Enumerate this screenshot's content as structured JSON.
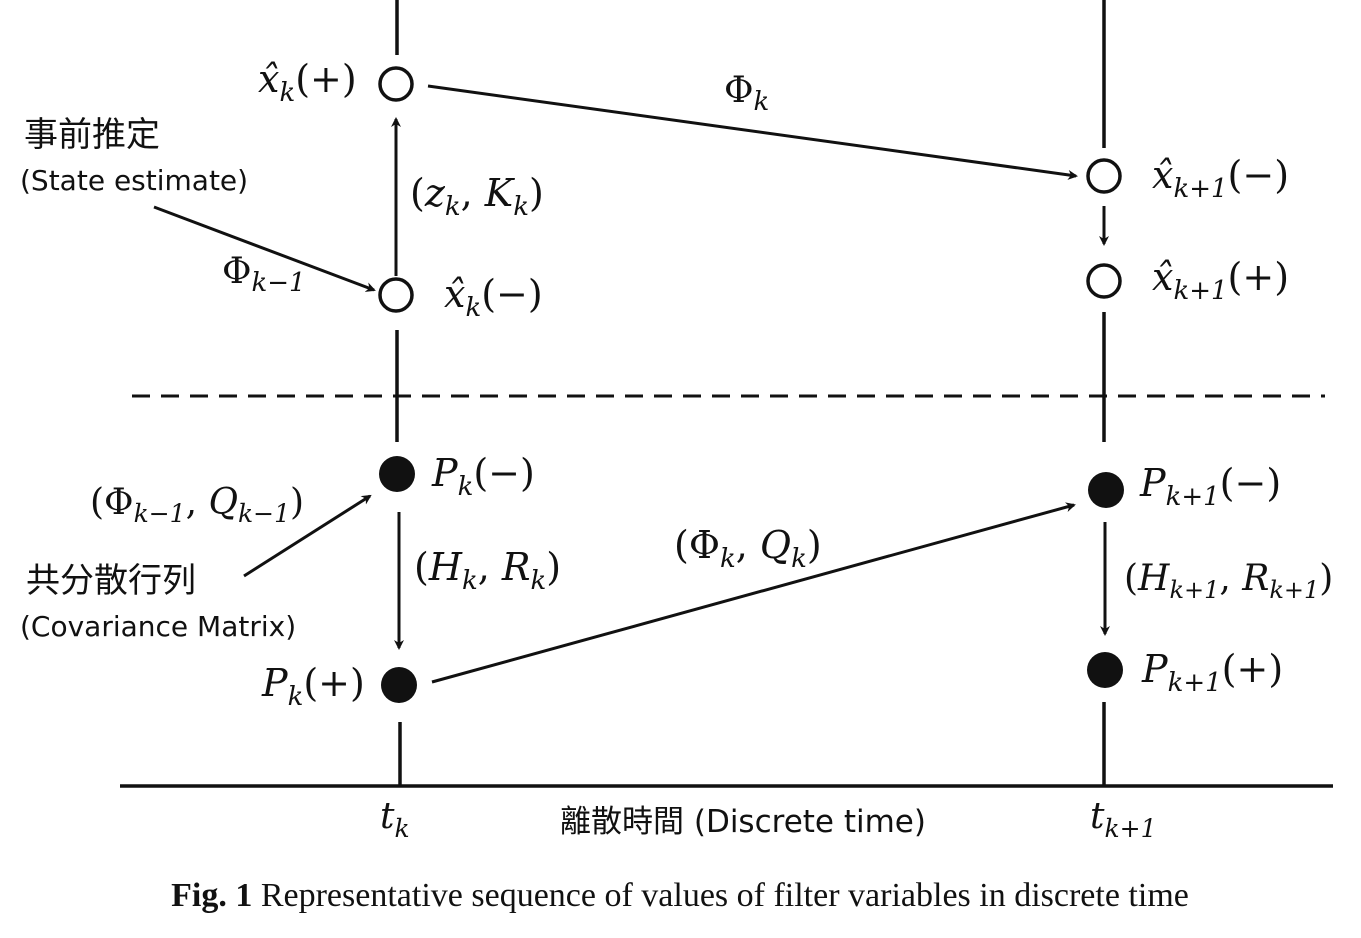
{
  "labels": {
    "xk_plus": {
      "base": "x̂",
      "sub": "k",
      "arg": "(+)"
    },
    "xk_minus": {
      "base": "x̂",
      "sub": "k",
      "arg": "(−)"
    },
    "xk1_minus": {
      "base": "x̂",
      "sub": "k+1",
      "arg": "(−)"
    },
    "xk1_plus": {
      "base": "x̂",
      "sub": "k+1",
      "arg": "(+)"
    },
    "phi_k": {
      "base": "Φ",
      "sub": "k"
    },
    "phi_km1": {
      "base": "Φ",
      "sub": "k−1"
    },
    "zk_Kk": {
      "open": "(",
      "a": "z",
      "asub": "k",
      "sep": ", ",
      "b": "K",
      "bsub": "k",
      "close": ")"
    },
    "pk_minus": {
      "base": "P",
      "sub": "k",
      "arg": "(−)"
    },
    "pk_plus": {
      "base": "P",
      "sub": "k",
      "arg": "(+)"
    },
    "pk1_minus": {
      "base": "P",
      "sub": "k+1",
      "arg": "(−)"
    },
    "pk1_plus": {
      "base": "P",
      "sub": "k+1",
      "arg": "(+)"
    },
    "phi_q_km1": {
      "open": "(",
      "a": "Φ",
      "asub": "k−1",
      "sep": ", ",
      "b": "Q",
      "bsub": "k−1",
      "close": ")"
    },
    "hk_rk": {
      "open": "(",
      "a": "H",
      "asub": "k",
      "sep": ", ",
      "b": "R",
      "bsub": "k",
      "close": ")"
    },
    "phik_qk": {
      "open": "(",
      "a": "Φ",
      "asub": "k",
      "sep": ", ",
      "b": "Q",
      "bsub": "k",
      "close": ")"
    },
    "hk1_rk1": {
      "open": "(",
      "a": "H",
      "asub": "k+1",
      "sep": ", ",
      "b": "R",
      "bsub": "k+1",
      "close": ")"
    },
    "tk": {
      "base": "t",
      "sub": "k"
    },
    "tk1": {
      "base": "t",
      "sub": "k+1"
    }
  },
  "annotations": {
    "state_jp": "事前推定",
    "state_en": "(State estimate)",
    "cov_jp": "共分散行列",
    "cov_en": "(Covariance Matrix)",
    "axis_label": "離散時間 (Discrete time)"
  },
  "caption": {
    "prefix": "Fig. 1",
    "text": " Representative sequence of values of filter variables in discrete time"
  }
}
